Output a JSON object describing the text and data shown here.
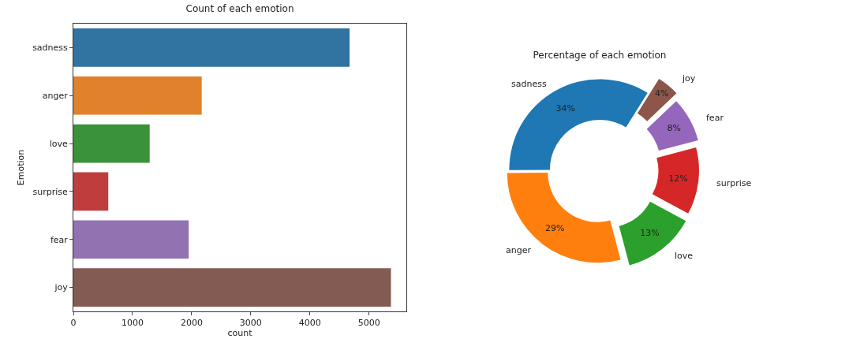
{
  "chart_data": [
    {
      "type": "bar",
      "orientation": "horizontal",
      "title": "Count of each emotion",
      "xlabel": "count",
      "ylabel": "Emotion",
      "categories": [
        "sadness",
        "anger",
        "love",
        "surprise",
        "fear",
        "joy"
      ],
      "values": [
        4670,
        2170,
        1290,
        590,
        1950,
        5370
      ],
      "colors": [
        "#3274a1",
        "#e1812c",
        "#3a923a",
        "#c03d3e",
        "#9372b2",
        "#845b53"
      ],
      "xlim": [
        0,
        5630
      ],
      "xticks": [
        0,
        1000,
        2000,
        3000,
        4000,
        5000
      ],
      "grid": false,
      "legend": false
    },
    {
      "type": "donut",
      "title": "Percentage of each emotion",
      "categories": [
        "sadness",
        "anger",
        "love",
        "surprise",
        "fear",
        "joy"
      ],
      "values": [
        34,
        29,
        13,
        12,
        8,
        4
      ],
      "value_labels": [
        "34%",
        "29%",
        "13%",
        "12%",
        "8%",
        "4%"
      ],
      "colors": [
        "#1f77b4",
        "#ff7f0e",
        "#2ca02c",
        "#d62728",
        "#9467bd",
        "#8c564b"
      ],
      "legend": false
    }
  ]
}
